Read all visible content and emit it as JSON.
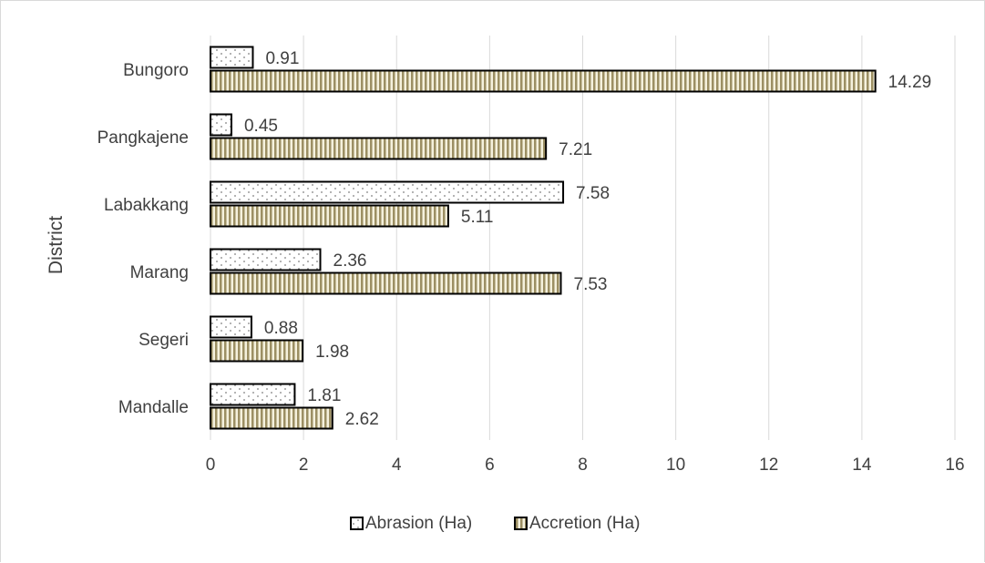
{
  "chart_data": {
    "type": "bar",
    "orientation": "horizontal",
    "categories": [
      "Bungoro",
      "Pangkajene",
      "Labakkang",
      "Marang",
      "Segeri",
      "Mandalle"
    ],
    "series": [
      {
        "name": "Abrasion (Ha)",
        "values": [
          0.91,
          0.45,
          7.58,
          2.36,
          0.88,
          1.81
        ],
        "pattern": "dotted",
        "color": "#000000"
      },
      {
        "name": "Accretion (Ha)",
        "values": [
          14.29,
          7.21,
          5.11,
          7.53,
          1.98,
          2.62
        ],
        "pattern": "vertical-stripes",
        "color": "#9c8f63"
      }
    ],
    "data_labels": {
      "Abrasion (Ha)": [
        "0.91",
        "0.45",
        "7.58",
        "2.36",
        "0.88",
        "1.81"
      ],
      "Accretion (Ha)": [
        "14.29",
        "7.21",
        "5.11",
        "7.53",
        "1.98",
        "2.62"
      ]
    },
    "xlim": [
      0,
      16
    ],
    "xticks": [
      0,
      2,
      4,
      6,
      8,
      10,
      12,
      14,
      16
    ],
    "xtick_labels": [
      "0",
      "2",
      "4",
      "6",
      "8",
      "10",
      "12",
      "14",
      "16"
    ],
    "xlabel": "",
    "ylabel": "District",
    "title": "",
    "grid": "vertical",
    "legend": "bottom"
  },
  "colors": {
    "stripe": "#9c8f63",
    "grid": "#d9d9d9",
    "text": "#404040",
    "bar_border": "#000000"
  }
}
